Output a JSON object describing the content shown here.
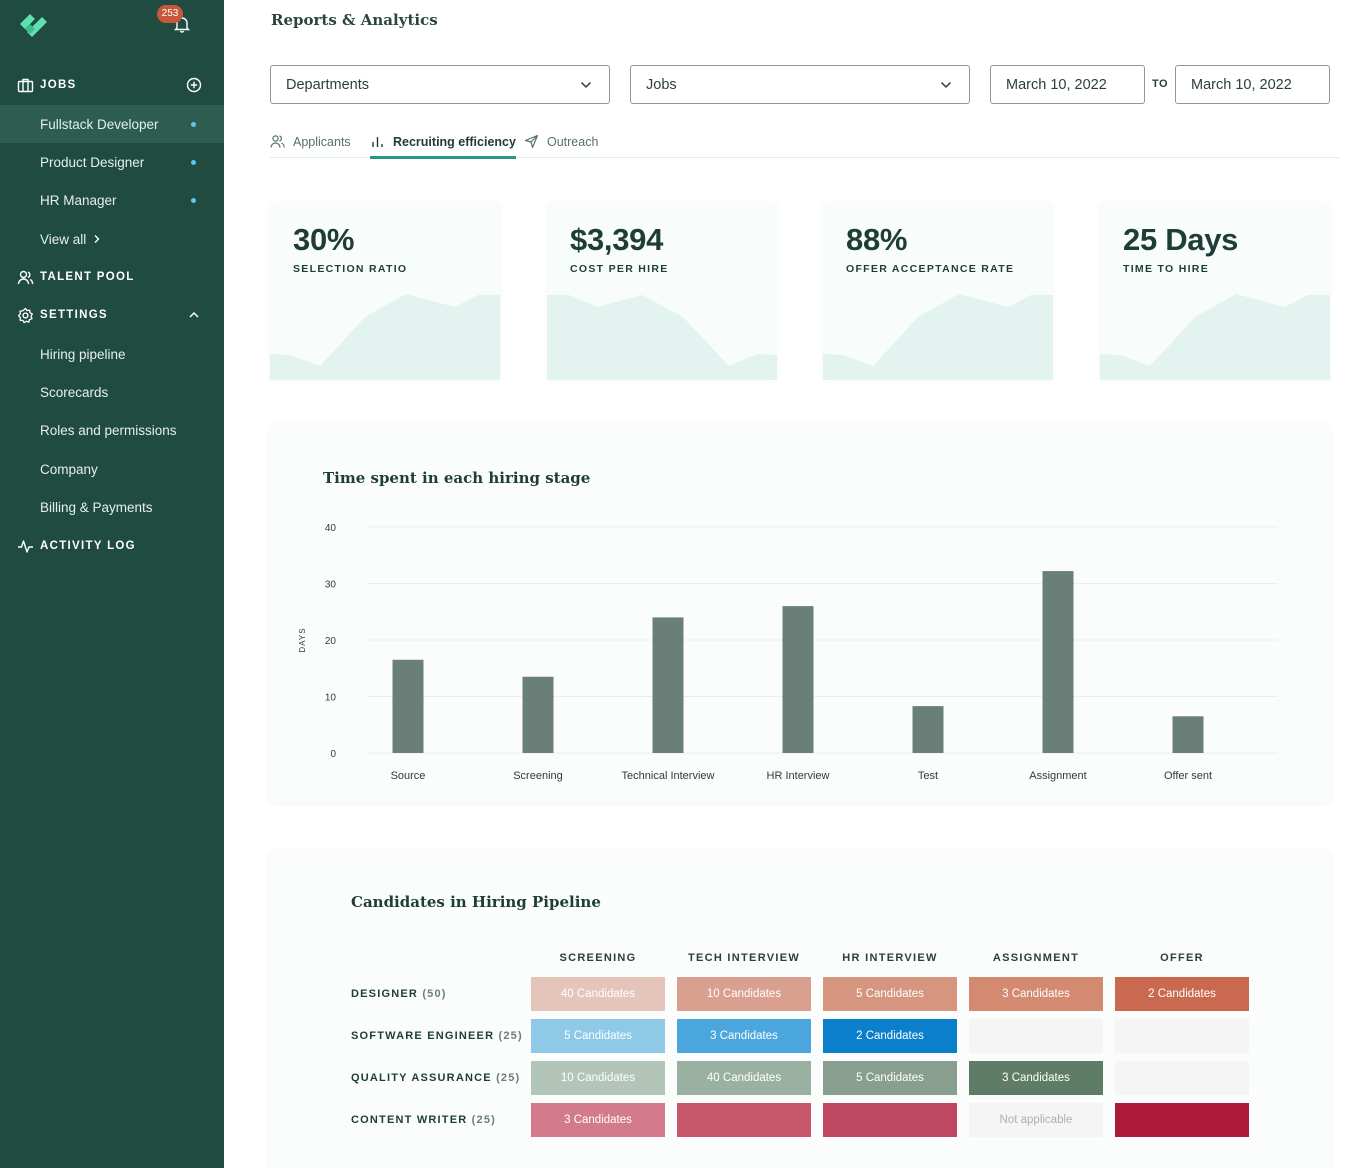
{
  "sidebar": {
    "notification_count": "253",
    "jobs": {
      "label": "JOBS",
      "items": [
        {
          "label": "Fullstack Developer"
        },
        {
          "label": "Product Designer"
        },
        {
          "label": "HR Manager"
        }
      ],
      "view_all": "View all"
    },
    "talent_pool": {
      "label": "TALENT POOL"
    },
    "settings": {
      "label": "SETTINGS",
      "items": [
        {
          "label": "Hiring pipeline"
        },
        {
          "label": "Scorecards"
        },
        {
          "label": "Roles and permissions"
        },
        {
          "label": "Company"
        },
        {
          "label": "Billing & Payments"
        }
      ]
    },
    "activity_log": {
      "label": "ACTIVITY LOG"
    }
  },
  "header": {
    "title": "Reports & Analytics"
  },
  "filters": {
    "departments": "Departments",
    "jobs": "Jobs",
    "date_from": "March 10, 2022",
    "to_label": "TO",
    "date_to": "March 10, 2022"
  },
  "tabs": [
    {
      "label": "Applicants",
      "icon": "users-icon"
    },
    {
      "label": "Recruiting efficiency",
      "icon": "bar-chart-icon",
      "active": true
    },
    {
      "label": "Outreach",
      "icon": "send-icon"
    }
  ],
  "kpis": [
    {
      "value": "30%",
      "label": "SELECTION RATIO"
    },
    {
      "value": "$3,394",
      "label": "COST PER HIRE"
    },
    {
      "value": "88%",
      "label": "OFFER ACCEPTANCE RATE"
    },
    {
      "value": "25 Days",
      "label": "TIME TO HIRE"
    }
  ],
  "chart_data": {
    "type": "bar",
    "title": "Time spent in each hiring stage",
    "xlabel": "",
    "ylabel": "DAYS",
    "categories": [
      "Source",
      "Screening",
      "Technical Interview",
      "HR Interview",
      "Test",
      "Assignment",
      "Offer sent"
    ],
    "values": [
      16.5,
      13.5,
      24,
      26,
      8.3,
      32.2,
      6.5
    ],
    "ylim": [
      0,
      40
    ],
    "yticks": [
      0,
      10,
      20,
      30,
      40
    ],
    "grid": true,
    "bar_color": "#6a7f77"
  },
  "pipeline": {
    "title": "Candidates in Hiring Pipeline",
    "columns": [
      "SCREENING",
      "TECH INTERVIEW",
      "HR INTERVIEW",
      "ASSIGNMENT",
      "OFFER"
    ],
    "rows": [
      {
        "label": "DESIGNER",
        "count": "(50)",
        "cells": [
          {
            "text": "40 Candidates",
            "color": "#e5c4ba"
          },
          {
            "text": "10 Candidates",
            "color": "#d9a08f"
          },
          {
            "text": "5 Candidates",
            "color": "#d6957f"
          },
          {
            "text": "3 Candidates",
            "color": "#d48a71"
          },
          {
            "text": "2 Candidates",
            "color": "#c96a50"
          }
        ]
      },
      {
        "label": "SOFTWARE ENGINEER",
        "count": "(25)",
        "cells": [
          {
            "text": "5 Candidates",
            "color": "#8ec9e8"
          },
          {
            "text": "3 Candidates",
            "color": "#4aa6dc"
          },
          {
            "text": "2 Candidates",
            "color": "#0b7fcb"
          },
          {
            "text": "",
            "color": "#f4f5f4"
          },
          {
            "text": "",
            "color": "#f4f5f4"
          }
        ]
      },
      {
        "label": "QUALITY ASSURANCE",
        "count": "(25)",
        "cells": [
          {
            "text": "10 Candidates",
            "color": "#b3c5b8"
          },
          {
            "text": "40 Candidates",
            "color": "#9ab1a1"
          },
          {
            "text": "5 Candidates",
            "color": "#889f8f"
          },
          {
            "text": "3 Candidates",
            "color": "#5f7d66"
          },
          {
            "text": "",
            "color": "#f4f5f4"
          }
        ]
      },
      {
        "label": "CONTENT WRITER",
        "count": "(25)",
        "cells": [
          {
            "text": "3 Candidates",
            "color": "#d37b8d"
          },
          {
            "text": "",
            "color": "#c9576c"
          },
          {
            "text": "",
            "color": "#be4761"
          },
          {
            "text": "Not applicable",
            "color": "#f4f5f4"
          },
          {
            "text": "",
            "color": "#ad1a3a"
          }
        ]
      }
    ]
  }
}
